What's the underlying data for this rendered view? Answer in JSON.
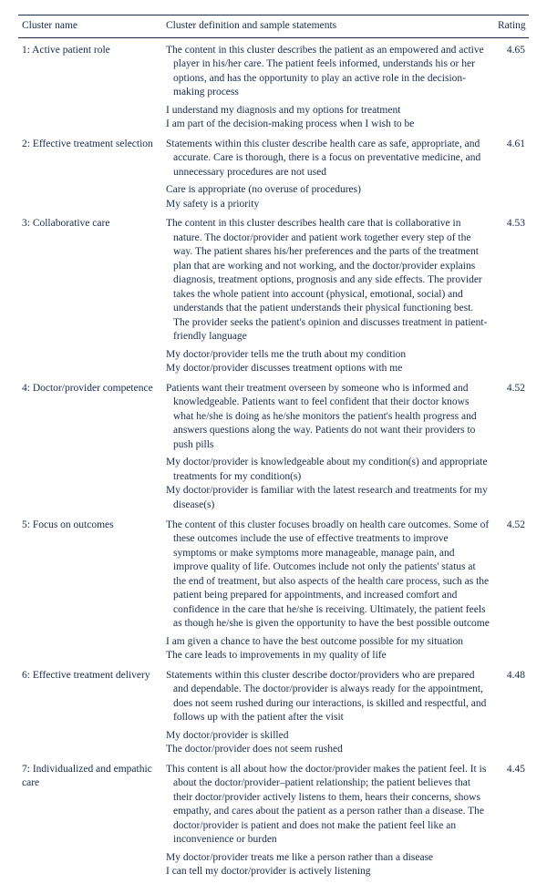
{
  "headers": {
    "name": "Cluster name",
    "def": "Cluster definition and sample statements",
    "rating": "Rating"
  },
  "clusters": [
    {
      "name": "1: Active patient role",
      "rating": "4.65",
      "definition": "The content in this cluster describes the patient as an empowered and active player in his/her care. The patient feels informed, understands his or her options, and has the opportunity to play an active role in the decision-making process",
      "samples": [
        "I understand my diagnosis and my options for treatment",
        "I am part of the decision-making process when I wish to be"
      ]
    },
    {
      "name": "2: Effective treatment selection",
      "rating": "4.61",
      "definition": "Statements within this cluster describe health care as safe, appropriate, and accurate. Care is thorough, there is a focus on preventative medicine, and unnecessary procedures are not used",
      "samples": [
        "Care is appropriate (no overuse of procedures)",
        "My safety is a priority"
      ]
    },
    {
      "name": "3: Collaborative care",
      "rating": "4.53",
      "definition": "The content in this cluster describes health care that is collaborative in nature. The doctor/provider and patient work together every step of the way. The patient shares his/her preferences and the parts of the treatment plan that are working and not working, and the doctor/provider explains diagnosis, treatment options, prognosis and any side effects. The provider takes the whole patient into account (physical, emotional, social) and understands that the patient understands their physical functioning best. The provider seeks the patient's opinion and discusses treatment in patient-friendly language",
      "samples": [
        "My doctor/provider tells me the truth about my condition",
        "My doctor/provider discusses treatment options with me"
      ]
    },
    {
      "name": "4: Doctor/provider competence",
      "rating": "4.52",
      "definition": "Patients want their treatment overseen by someone who is informed and knowledgeable. Patients want to feel confident that their doctor knows what he/she is doing as he/she monitors the patient's health progress and answers questions along the way. Patients do not want their providers to push pills",
      "samples": [
        "My doctor/provider is knowledgeable about my condition(s) and appropriate treatments for my condition(s)",
        "My doctor/provider is familiar with the latest research and treatments for my disease(s)"
      ]
    },
    {
      "name": "5: Focus on outcomes",
      "rating": "4.52",
      "definition": "The content of this cluster focuses broadly on health care outcomes. Some of these outcomes include the use of effective treatments to improve symptoms or make symptoms more manageable, manage pain, and improve quality of life. Outcomes include not only the patients' status at the end of treatment, but also aspects of the health care process, such as the patient being prepared for appointments, and increased comfort and confidence in the care that he/she is receiving. Ultimately, the patient feels as though he/she is given the opportunity to have the best possible outcome",
      "samples": [
        "I am given a chance to have the best outcome possible for my situation",
        "The care leads to improvements in my quality of life"
      ]
    },
    {
      "name": "6: Effective treatment delivery",
      "rating": "4.48",
      "definition": "Statements within this cluster describe doctor/providers who are prepared and dependable. The doctor/provider is always ready for the appointment, does not seem rushed during our interactions, is skilled and respectful, and follows up with the patient after the visit",
      "samples": [
        "My doctor/provider is skilled",
        "The doctor/provider does not seem rushed"
      ]
    },
    {
      "name": "7: Individualized and empathic care",
      "rating": "4.45",
      "definition": "This content is all about how the doctor/provider makes the patient feel. It is about the doctor/provider–patient relationship; the patient believes that their doctor/provider actively listens to them, hears their concerns, shows empathy, and cares about the patient as a person rather than a disease. The doctor/provider is patient and does not make the patient feel like an inconvenience or burden",
      "samples": [
        "My doctor/provider treats me like a person rather than a disease",
        "I can tell my doctor/provider is actively listening"
      ]
    }
  ]
}
